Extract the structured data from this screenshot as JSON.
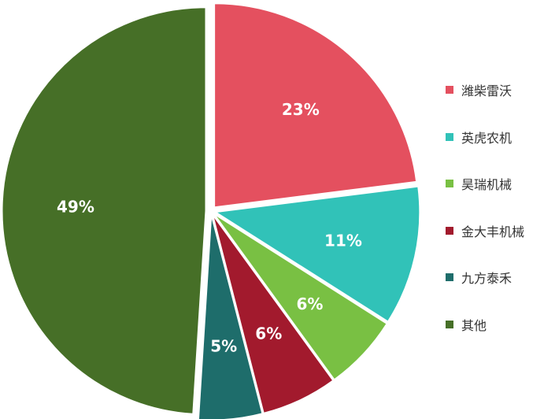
{
  "chart_data": {
    "type": "pie",
    "title": "",
    "slices": [
      {
        "name": "潍柴雷沃",
        "value": 23,
        "label": "23%",
        "color": "#E4505F"
      },
      {
        "name": "英虎农机",
        "value": 11,
        "label": "11%",
        "color": "#31C2B8"
      },
      {
        "name": "昊瑞机械",
        "value": 6,
        "label": "6%",
        "color": "#79C043"
      },
      {
        "name": "金大丰机械",
        "value": 6,
        "label": "6%",
        "color": "#A21A2D"
      },
      {
        "name": "九方泰禾",
        "value": 5,
        "label": "5%",
        "color": "#1E6D6B"
      },
      {
        "name": "其他",
        "value": 49,
        "label": "49%",
        "color": "#466F27"
      }
    ],
    "legend_position": "right"
  }
}
